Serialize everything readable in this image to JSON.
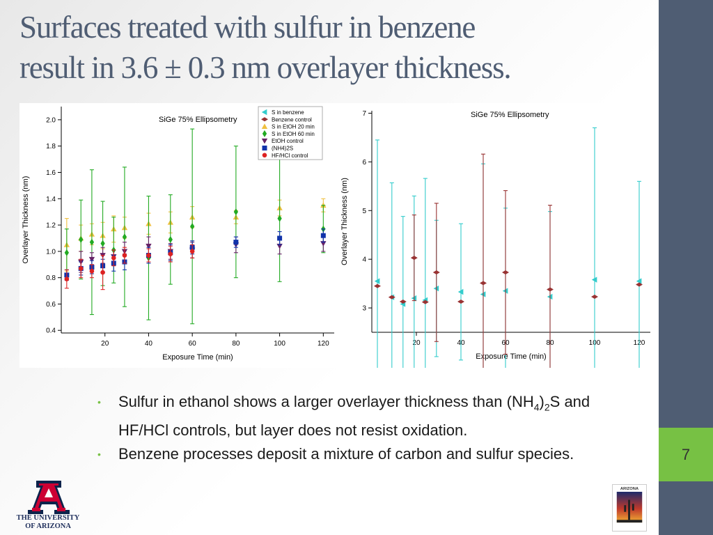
{
  "slide": {
    "title_line1": "Surfaces treated with sulfur in benzene",
    "title_line2": "result in 3.6 ± 0.3 nm overlayer thickness.",
    "page_number": "7",
    "bullets": {
      "b1_pre": "Sulfur in ethanol shows a larger overlayer thickness than (NH",
      "b1_sub1": "4",
      "b1_mid": ")",
      "b1_sub2": "2",
      "b1_post": "S and HF/HCl controls, but layer does not resist oxidation.",
      "b2": "Benzene processes deposit a mixture of carbon and sulfur species."
    },
    "logo_text_line1": "THE UNIVERSITY",
    "logo_text_line2": "OF ARIZONA",
    "logo2_text": "ARIZONA",
    "colors": {
      "title": "#4f5d73",
      "sidebar": "#4f5d73",
      "accent": "#77c144",
      "logo_red": "#cc0033",
      "logo_navy": "#0c234b"
    }
  },
  "chart_data": [
    {
      "type": "scatter",
      "title": "SiGe 75% Ellipsometry",
      "xlabel": "Exposure Time (min)",
      "ylabel": "Overlayer Thickness (nm)",
      "xlim": [
        0,
        125
      ],
      "ylim": [
        0.38,
        2.1
      ],
      "xticks": [
        20,
        40,
        60,
        80,
        100,
        120
      ],
      "yticks": [
        0.4,
        0.6,
        0.8,
        1.0,
        1.2,
        1.4,
        1.6,
        1.8,
        2.0
      ],
      "ytick_labels": [
        "0.4",
        "0.6",
        "0.8",
        "1.0",
        "1.2",
        "1.4",
        "1.6",
        "1.8",
        "2.0"
      ],
      "legend_position": "top-right",
      "series": [
        {
          "name": "S in benzene",
          "color": "#33cccc",
          "marker": "triangle-left",
          "in_plot": false,
          "points": []
        },
        {
          "name": "Benzene control",
          "color": "#993333",
          "marker": "bowtie",
          "in_plot": false,
          "points": []
        },
        {
          "name": "S in EtOH 20 min",
          "color": "#f0c040",
          "marker": "triangle-up",
          "points": [
            [
              2.5,
              1.05,
              0.2
            ],
            [
              9,
              1.1,
              0.1
            ],
            [
              14,
              1.13,
              0.08
            ],
            [
              19,
              1.12,
              0.1
            ],
            [
              24,
              1.17,
              0.1
            ],
            [
              29,
              1.18,
              0.08
            ],
            [
              40,
              1.21,
              0.08
            ],
            [
              50,
              1.22,
              0.08
            ],
            [
              60,
              1.26,
              0.08
            ],
            [
              80,
              1.26,
              0.05
            ],
            [
              100,
              1.33,
              0.06
            ],
            [
              120,
              1.35,
              0.05
            ]
          ]
        },
        {
          "name": "S in EtOH 60 min",
          "color": "#22aa22",
          "marker": "diamond",
          "points": [
            [
              2.5,
              0.99,
              0.18
            ],
            [
              9,
              1.09,
              0.3
            ],
            [
              14,
              1.07,
              0.55
            ],
            [
              19,
              1.06,
              0.32
            ],
            [
              24,
              1.01,
              0.25
            ],
            [
              29,
              1.11,
              0.53
            ],
            [
              40,
              0.95,
              0.47
            ],
            [
              50,
              1.09,
              0.34
            ],
            [
              60,
              1.19,
              0.74
            ],
            [
              80,
              1.3,
              0.5
            ],
            [
              100,
              1.25,
              0.48
            ],
            [
              120,
              1.17,
              0.18
            ]
          ]
        },
        {
          "name": "EtOH control",
          "color": "#662266",
          "marker": "triangle-down",
          "points": [
            [
              9,
              0.92,
              0.08
            ],
            [
              14,
              0.94,
              0.05
            ],
            [
              19,
              0.97,
              0.06
            ],
            [
              24,
              0.96,
              0.05
            ],
            [
              29,
              1.0,
              0.07
            ],
            [
              40,
              1.04,
              0.07
            ],
            [
              50,
              1.0,
              0.06
            ],
            [
              60,
              1.01,
              0.06
            ],
            [
              80,
              1.05,
              0.06
            ],
            [
              100,
              1.04,
              0.06
            ],
            [
              120,
              1.06,
              0.06
            ]
          ]
        },
        {
          "name": "(NH4)2S",
          "color": "#1133aa",
          "marker": "square",
          "points": [
            [
              2.5,
              0.82,
              0.04
            ],
            [
              9,
              0.87,
              0.05
            ],
            [
              14,
              0.88,
              0.05
            ],
            [
              19,
              0.89,
              0.05
            ],
            [
              24,
              0.91,
              0.06
            ],
            [
              29,
              0.92,
              0.06
            ],
            [
              40,
              0.97,
              0.06
            ],
            [
              50,
              0.99,
              0.06
            ],
            [
              60,
              1.03,
              0.05
            ],
            [
              80,
              1.07,
              0.04
            ],
            [
              100,
              1.1,
              0.05
            ],
            [
              120,
              1.12,
              0.05
            ]
          ]
        },
        {
          "name": "HF/HCl control",
          "color": "#dd2222",
          "marker": "circle",
          "points": [
            [
              2.5,
              0.79,
              0.07
            ],
            [
              9,
              0.87,
              0.07
            ],
            [
              14,
              0.85,
              0.05
            ],
            [
              19,
              0.84,
              0.13
            ],
            [
              24,
              0.95,
              0.06
            ],
            [
              29,
              0.97,
              0.06
            ],
            [
              40,
              0.97,
              0.05
            ],
            [
              50,
              0.98,
              0.06
            ],
            [
              60,
              1.0,
              0.05
            ]
          ]
        }
      ]
    },
    {
      "type": "scatter",
      "title": "SiGe 75% Ellipsometry",
      "xlabel": "Exposure Time (min)",
      "ylabel": "Overlayer Thickness (nm)",
      "xlim": [
        0,
        125
      ],
      "ylim": [
        2.5,
        7.05
      ],
      "xticks": [
        20,
        40,
        60,
        80,
        100,
        120
      ],
      "yticks": [
        3,
        4,
        5,
        6,
        7
      ],
      "series": [
        {
          "name": "S in benzene",
          "color": "#33cccc",
          "marker": "triangle-left",
          "points": [
            [
              2.5,
              3.55,
              2.9
            ],
            [
              9,
              3.22,
              2.35
            ],
            [
              14,
              3.08,
              1.8
            ],
            [
              19,
              3.2,
              2.1
            ],
            [
              24,
              3.16,
              2.5
            ],
            [
              29,
              3.4,
              1.4
            ],
            [
              40,
              3.33,
              1.4
            ],
            [
              50,
              3.28,
              2.68
            ],
            [
              60,
              3.35,
              1.7
            ],
            [
              80,
              3.23,
              1.75
            ],
            [
              100,
              3.58,
              3.12
            ],
            [
              120,
              3.55,
              2.05
            ]
          ]
        },
        {
          "name": "Benzene control",
          "color": "#993333",
          "marker": "bowtie",
          "points": [
            [
              2.5,
              3.45,
              0.0
            ],
            [
              9,
              3.22,
              0.0
            ],
            [
              14,
              3.13,
              0.0
            ],
            [
              19,
              4.03,
              0.88
            ],
            [
              24,
              3.12,
              0.0
            ],
            [
              29,
              3.73,
              1.42
            ],
            [
              40,
              3.13,
              0.0
            ],
            [
              50,
              3.51,
              2.65
            ],
            [
              60,
              3.73,
              1.68
            ],
            [
              80,
              3.38,
              1.73
            ],
            [
              100,
              3.23,
              0.0
            ],
            [
              120,
              3.48,
              0.0
            ]
          ]
        }
      ]
    }
  ]
}
